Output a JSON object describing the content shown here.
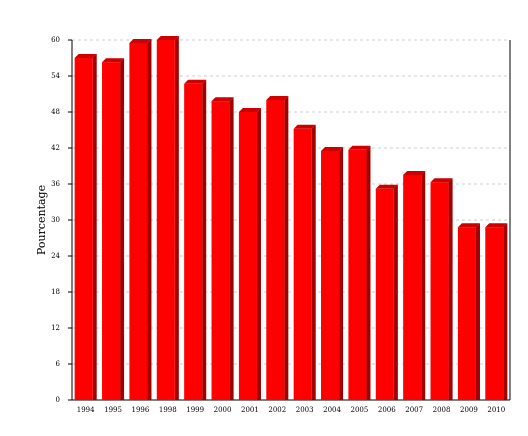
{
  "chart_data": {
    "type": "bar",
    "y_label": "Pourcentage",
    "categories": [
      "1994",
      "1995",
      "1996",
      "1998",
      "1999",
      "2000",
      "2001",
      "2002",
      "2003",
      "2004",
      "2005",
      "2006",
      "2007",
      "2008",
      "2009",
      "2010"
    ],
    "values": [
      57,
      56.3,
      59.5,
      60,
      52.7,
      49.8,
      48,
      50,
      45.2,
      41.5,
      41.7,
      35.2,
      37.5,
      36.3,
      28.8,
      28.8
    ],
    "color": "#ff0000",
    "ylim": [
      0,
      60
    ],
    "yticks": [
      0,
      6,
      12,
      18,
      24,
      30,
      36,
      42,
      48,
      54,
      60
    ],
    "grid": true
  }
}
